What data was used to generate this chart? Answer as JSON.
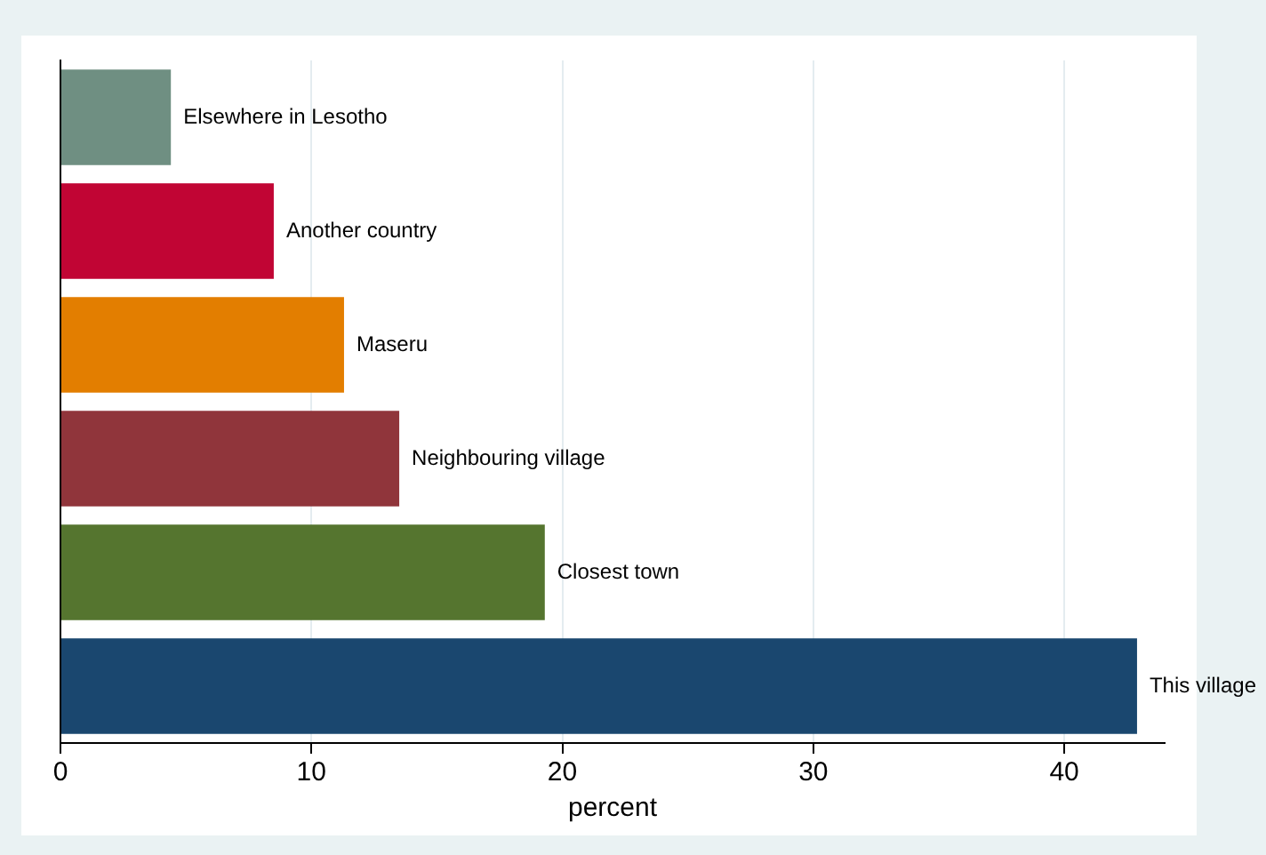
{
  "chart_data": {
    "type": "bar",
    "orientation": "horizontal",
    "xlabel": "percent",
    "categories": [
      "Elsewhere in Lesotho",
      "Another country",
      "Maseru",
      "Neighbouring village",
      "Closest town",
      "This village"
    ],
    "values": [
      4.4,
      8.5,
      11.3,
      13.5,
      19.3,
      42.9
    ],
    "colors": [
      "#6f8f82",
      "#c10534",
      "#e37e00",
      "#90353b",
      "#55752f",
      "#1a476f"
    ],
    "xlim": [
      0,
      44
    ],
    "xticks": [
      0,
      10,
      20,
      30,
      40
    ],
    "grid": "x",
    "tick_labels": "x",
    "legend": false
  }
}
